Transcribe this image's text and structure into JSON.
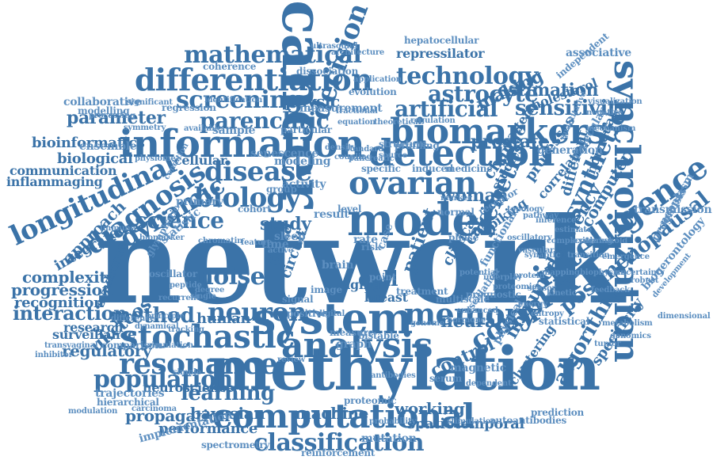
{
  "palette": {
    "primary": "#3b73a8",
    "secondary": "#5d8fc0",
    "background": "#ffffff"
  },
  "words": [
    "network",
    "cancer",
    "methylation",
    "system",
    "computational",
    "model",
    "analysis",
    "synchronization",
    "information",
    "differentiation",
    "intelligence",
    "longitudinal",
    "detection",
    "biomarkers",
    "stochastic",
    "resonance",
    "memory",
    "classification",
    "neuron",
    "disease",
    "ovarian",
    "biology",
    "mathematical",
    "diagnosis",
    "screening",
    "dynamic",
    "parenclitic",
    "technology",
    "astrocyte",
    "artificial",
    "decision",
    "complex",
    "noise",
    "population",
    "postmenopausal",
    "synthetic",
    "genetic",
    "science",
    "method",
    "interaction",
    "complexity",
    "progression",
    "recognition",
    "bioinformatics",
    "biological",
    "communication",
    "inflammaging",
    "parameter",
    "collaborative",
    "modelling",
    "ensemble",
    "integrated",
    "approach",
    "syndrome",
    "regulatory",
    "surveillance",
    "research",
    "ukctcos",
    "human",
    "neural",
    "control",
    "algorithm",
    "specificity",
    "sensitivity",
    "estimation",
    "making",
    "cholesterol",
    "prostate",
    "woman",
    "study",
    "data",
    "patient",
    "cell",
    "breast",
    "aging",
    "circuit",
    "brain",
    "learning",
    "bayesian",
    "machine",
    "working",
    "propagation",
    "performance",
    "implementation",
    "spectrometry",
    "mutation",
    "spatiotemporal",
    "reinforcement",
    "immunodeficiency",
    "autoantibodies",
    "prediction",
    "clustering",
    "physical",
    "clinical",
    "calcium",
    "spiking",
    "receptor",
    "specific",
    "induced",
    "medicine",
    "genome",
    "hormone",
    "measure",
    "graph",
    "bistable",
    "magnetic",
    "serum",
    "phase",
    "risk",
    "rate",
    "case",
    "point",
    "image",
    "signal",
    "active",
    "time",
    "sleep",
    "physic",
    "structure",
    "cellular",
    "senescence",
    "modeling",
    "degree",
    "cohort",
    "sample",
    "statistic",
    "oscillator",
    "primary",
    "condition",
    "physiome",
    "group",
    "activity",
    "result",
    "level",
    "normal",
    "marker",
    "change",
    "studies",
    "pattern",
    "processes",
    "correlation",
    "individual",
    "molecular",
    "different",
    "computer",
    "transmission",
    "neoplasm",
    "prognosis",
    "biogerontology",
    "development",
    "dimensional",
    "mechanism",
    "negative",
    "generation",
    "quantitative",
    "independent",
    "visualization",
    "associative",
    "repressilator",
    "hepatocellular",
    "ultrasound",
    "application",
    "architecture",
    "dissociation",
    "coherence",
    "evolution",
    "fractional",
    "equation",
    "measurement",
    "regression",
    "identification",
    "processing",
    "significant",
    "symmetry",
    "available",
    "particular",
    "theoretical",
    "regulation",
    "profiling",
    "source",
    "coupling",
    "standard",
    "density",
    "pancreatic",
    "neuroscience",
    "trajectories",
    "hierarchical",
    "modulation",
    "carcinoma",
    "comparison",
    "transvaginal",
    "inhibitor",
    "dynamical",
    "difference",
    "principle",
    "recurrent",
    "glymphatic",
    "biomarker",
    "immune",
    "peptide",
    "single",
    "digital",
    "positive",
    "potential",
    "prognostic",
    "functional",
    "oscillation",
    "proteomic",
    "antibodies",
    "probability",
    "stimulation",
    "simple",
    "review",
    "treatment",
    "multiscale",
    "enhanced",
    "interplay",
    "proteomics",
    "dependent",
    "statistical",
    "tracking",
    "simulation",
    "chromatin",
    "feature",
    "synaptic",
    "complexity",
    "transition",
    "threshold",
    "biophysics",
    "emergence",
    "feedback",
    "uncertainty",
    "robust",
    "protein",
    "kinetic",
    "energy",
    "entropy",
    "oscillatory",
    "vascular",
    "metabolism",
    "genomics",
    "tumor",
    "sensor",
    "mapping",
    "screening",
    "estimate",
    "inference",
    "pathway",
    "topology",
    "cortex",
    "spike",
    "plasticity",
    "firing",
    "stability",
    "flow",
    "noise",
    "epigenetic",
    "marker",
    "sample",
    "imaging",
    "serum",
    "trial",
    "cohort",
    "biology"
  ]
}
